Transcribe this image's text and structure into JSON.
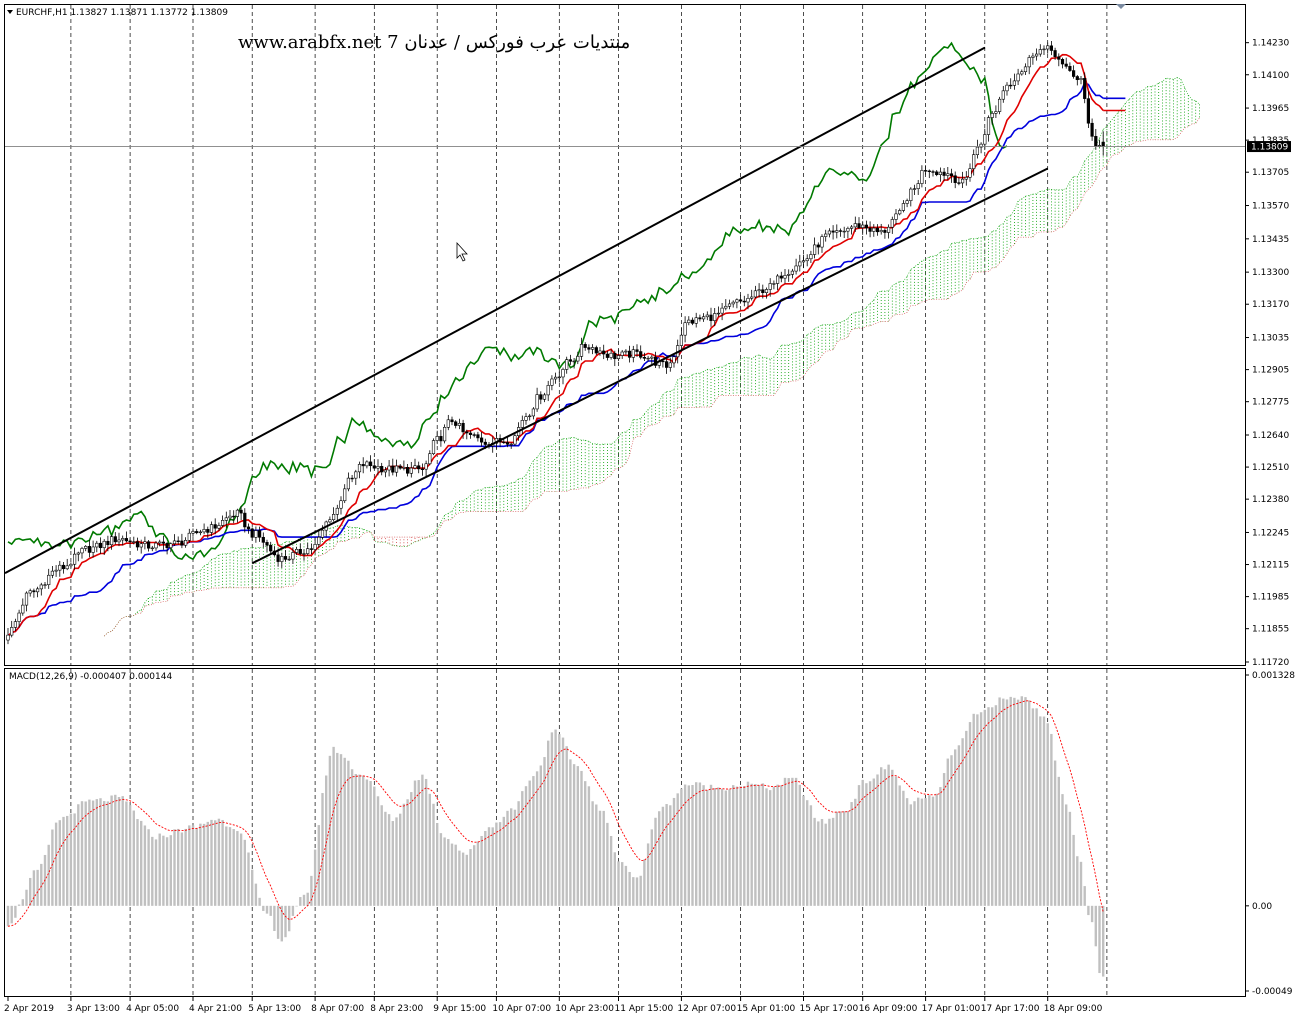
{
  "window": {
    "main_title": "EURCHF,H1  1.13827 1.13871 1.13772 1.13809",
    "macd_title": "MACD(12,26,9) -0.000407 0.000144",
    "watermark": "www.arabfx.net 7 منتديات عرب فوركس / عدنان"
  },
  "colors": {
    "background": "#ffffff",
    "candles": "#000000",
    "tenkan": "#e00000",
    "kijun": "#0000dd",
    "chikou": "#007a00",
    "cloud_up": "#00a000",
    "cloud_down": "#d04040",
    "channel": "#000000",
    "macd_hist": "#c0c0c0",
    "macd_signal": "#ff0000",
    "grid": "#000000"
  },
  "chart_data": [
    {
      "type": "candlestick",
      "symbol": "EURCHF",
      "timeframe": "H1",
      "title": "EURCHF,H1  1.13827 1.13871 1.13772 1.13809",
      "last": {
        "open": 1.13827,
        "high": 1.13871,
        "low": 1.13772,
        "close": 1.13809
      },
      "current_price_label": "1.13809",
      "ylim": [
        1.1172,
        1.1433
      ],
      "y_ticks": [
        "1.14230",
        "1.14100",
        "1.13965",
        "1.13835",
        "1.13705",
        "1.13570",
        "1.13435",
        "1.13300",
        "1.13170",
        "1.13035",
        "1.12905",
        "1.12775",
        "1.12640",
        "1.12510",
        "1.12380",
        "1.12245",
        "1.12115",
        "1.11985",
        "1.11855",
        "1.11720"
      ],
      "x_ticks": [
        "2 Apr 2019",
        "3 Apr 13:00",
        "4 Apr 05:00",
        "4 Apr 21:00",
        "5 Apr 13:00",
        "8 Apr 07:00",
        "8 Apr 23:00",
        "9 Apr 15:00",
        "10 Apr 07:00",
        "10 Apr 23:00",
        "11 Apr 15:00",
        "12 Apr 07:00",
        "15 Apr 01:00",
        "15 Apr 17:00",
        "16 Apr 09:00",
        "17 Apr 01:00",
        "17 Apr 17:00",
        "18 Apr 09:00"
      ],
      "anchors": [
        [
          0,
          1.1184
        ],
        [
          6,
          1.12
        ],
        [
          14,
          1.121
        ],
        [
          22,
          1.1218
        ],
        [
          30,
          1.1222
        ],
        [
          38,
          1.1219
        ],
        [
          45,
          1.122
        ],
        [
          54,
          1.1226
        ],
        [
          62,
          1.1232
        ],
        [
          66,
          1.1224
        ],
        [
          74,
          1.1214
        ],
        [
          82,
          1.1218
        ],
        [
          88,
          1.1232
        ],
        [
          92,
          1.1245
        ],
        [
          96,
          1.1252
        ],
        [
          104,
          1.125
        ],
        [
          112,
          1.125
        ],
        [
          116,
          1.1262
        ],
        [
          120,
          1.127
        ],
        [
          124,
          1.1264
        ],
        [
          130,
          1.1261
        ],
        [
          136,
          1.1262
        ],
        [
          140,
          1.1272
        ],
        [
          144,
          1.128
        ],
        [
          148,
          1.1288
        ],
        [
          152,
          1.1294
        ],
        [
          156,
          1.13
        ],
        [
          164,
          1.1296
        ],
        [
          170,
          1.1297
        ],
        [
          178,
          1.1292
        ],
        [
          184,
          1.131
        ],
        [
          190,
          1.1312
        ],
        [
          198,
          1.1318
        ],
        [
          206,
          1.1324
        ],
        [
          210,
          1.133
        ],
        [
          214,
          1.1334
        ],
        [
          222,
          1.1345
        ],
        [
          230,
          1.1349
        ],
        [
          236,
          1.1346
        ],
        [
          240,
          1.1352
        ],
        [
          244,
          1.1362
        ],
        [
          248,
          1.1372
        ],
        [
          254,
          1.137
        ],
        [
          258,
          1.1366
        ],
        [
          262,
          1.138
        ],
        [
          266,
          1.1394
        ],
        [
          270,
          1.1406
        ],
        [
          274,
          1.1412
        ],
        [
          278,
          1.142
        ],
        [
          282,
          1.142
        ],
        [
          286,
          1.1412
        ],
        [
          290,
          1.1408
        ],
        [
          292,
          1.139
        ],
        [
          294,
          1.1382
        ],
        [
          296,
          1.1381
        ]
      ],
      "channel_lines": [
        {
          "start": [
            "2 Apr 2019",
            1.1208
          ],
          "end": [
            "17 Apr 17:00",
            1.1421
          ]
        },
        {
          "start": [
            "5 Apr 13:00",
            1.1212
          ],
          "end": [
            "18 Apr 09:00",
            1.1372
          ]
        }
      ],
      "indicators": [
        "Ichimoku Tenkan-sen",
        "Ichimoku Kijun-sen",
        "Ichimoku Chikou Span",
        "Ichimoku Kumo (cloud)"
      ]
    },
    {
      "type": "bar+line",
      "name": "MACD(12,26,9)",
      "title": "MACD(12,26,9) -0.000407 0.000144",
      "main_value": -0.000407,
      "signal_value": 0.000144,
      "ylim": [
        -0.00049,
        0.001328
      ],
      "y_ticks": [
        "0.001328",
        "0.00",
        "-0.00049"
      ],
      "anchors": [
        [
          0,
          -0.0001
        ],
        [
          8,
          0.0002
        ],
        [
          14,
          0.0005
        ],
        [
          22,
          0.0006
        ],
        [
          30,
          0.00062
        ],
        [
          40,
          0.0004
        ],
        [
          50,
          0.00045
        ],
        [
          56,
          0.0005
        ],
        [
          62,
          0.00045
        ],
        [
          70,
          -5e-05
        ],
        [
          74,
          -0.0002
        ],
        [
          80,
          5e-05
        ],
        [
          88,
          0.0009
        ],
        [
          96,
          0.00075
        ],
        [
          104,
          0.0005
        ],
        [
          112,
          0.00075
        ],
        [
          118,
          0.0004
        ],
        [
          124,
          0.0003
        ],
        [
          130,
          0.00045
        ],
        [
          136,
          0.00055
        ],
        [
          142,
          0.00075
        ],
        [
          148,
          0.001
        ],
        [
          154,
          0.0008
        ],
        [
          160,
          0.00055
        ],
        [
          166,
          0.00025
        ],
        [
          170,
          0.00015
        ],
        [
          176,
          0.00055
        ],
        [
          184,
          0.0007
        ],
        [
          192,
          0.00068
        ],
        [
          200,
          0.0007
        ],
        [
          206,
          0.00068
        ],
        [
          212,
          0.00073
        ],
        [
          220,
          0.00048
        ],
        [
          226,
          0.00055
        ],
        [
          232,
          0.00072
        ],
        [
          238,
          0.0008
        ],
        [
          244,
          0.0006
        ],
        [
          250,
          0.00062
        ],
        [
          256,
          0.0009
        ],
        [
          262,
          0.0011
        ],
        [
          268,
          0.00118
        ],
        [
          274,
          0.0012
        ],
        [
          280,
          0.0011
        ],
        [
          286,
          0.0006
        ],
        [
          290,
          0.00025
        ],
        [
          292,
          -5e-05
        ],
        [
          296,
          -0.00045
        ]
      ]
    }
  ]
}
